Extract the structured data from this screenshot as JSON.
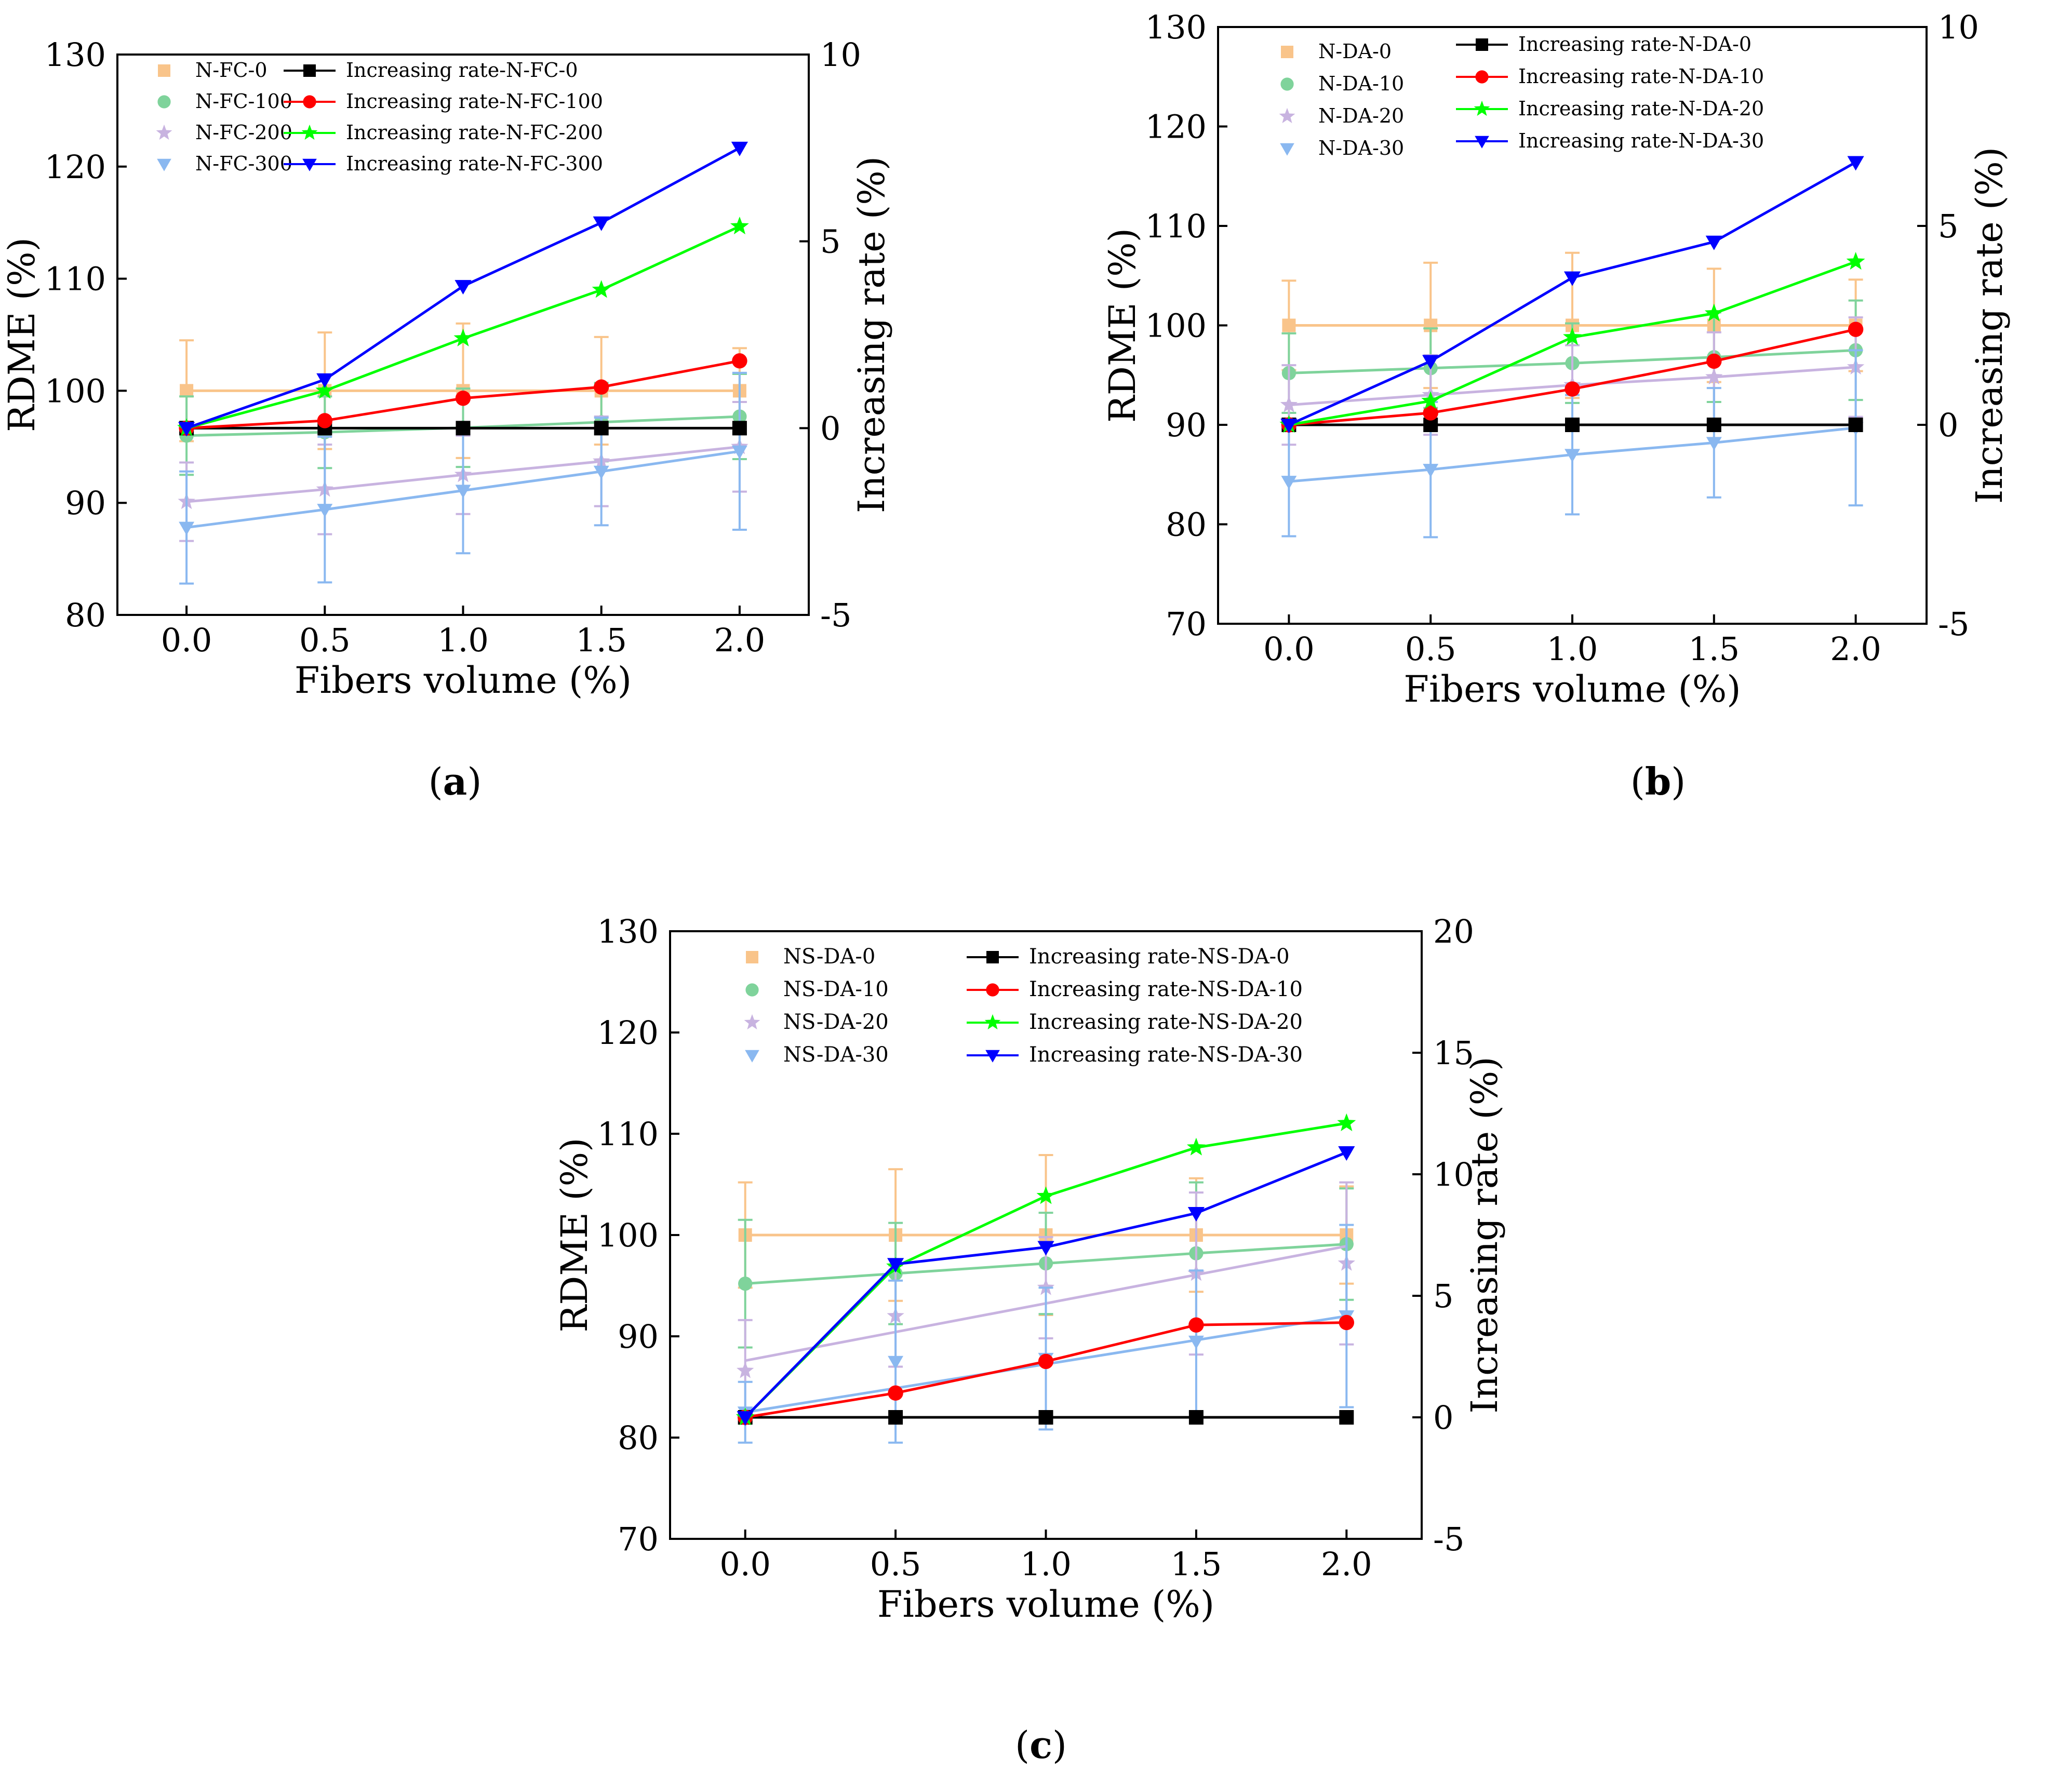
{
  "chart_data": [
    {
      "type": "line",
      "panel_label": "(a)",
      "xlabel": "Fibers volume (%)",
      "ylabel": "RDME (%)",
      "y2label": "Increasing rate (%)",
      "x": [
        0.0,
        0.5,
        1.0,
        1.5,
        2.0
      ],
      "x_tick_labels": [
        "0.0",
        "0.5",
        "1.0",
        "1.5",
        "2.0"
      ],
      "xlim": [
        -0.25,
        2.25
      ],
      "ylim": [
        80,
        130
      ],
      "y_ticks": [
        80,
        90,
        100,
        110,
        120,
        130
      ],
      "y2lim": [
        -5,
        10
      ],
      "y2_ticks": [
        -5,
        0,
        5,
        10
      ],
      "rdme_series": [
        {
          "name": "N-FC-0",
          "color": "#f9c48a",
          "marker": "square",
          "values": [
            100,
            100,
            100,
            100,
            100
          ],
          "err": [
            4.5,
            5.2,
            6.0,
            4.8,
            3.8
          ]
        },
        {
          "name": "N-FC-100",
          "color": "#7fd39b",
          "marker": "circle",
          "values": [
            96.0,
            96.3,
            96.7,
            97.2,
            97.7
          ],
          "err": [
            3.5,
            3.2,
            3.5,
            3.5,
            3.8
          ]
        },
        {
          "name": "N-FC-200",
          "color": "#c8b3e0",
          "marker": "star",
          "values": [
            90.1,
            91.2,
            92.5,
            93.7,
            95.0
          ],
          "err": [
            3.5,
            4.0,
            3.5,
            4.0,
            4.0
          ]
        },
        {
          "name": "N-FC-300",
          "color": "#8ab8f0",
          "marker": "triangle",
          "values": [
            87.8,
            89.4,
            91.1,
            92.8,
            94.6
          ],
          "err": [
            5.0,
            6.5,
            5.6,
            4.8,
            7.0
          ]
        }
      ],
      "rate_series": [
        {
          "name": "Increasing rate-N-FC-0",
          "color": "#000000",
          "marker": "square",
          "values": [
            0,
            0,
            0,
            0,
            0
          ]
        },
        {
          "name": "Increasing rate-N-FC-100",
          "color": "#ff0000",
          "marker": "circle",
          "values": [
            0,
            0.2,
            0.8,
            1.1,
            1.8
          ]
        },
        {
          "name": "Increasing rate-N-FC-200",
          "color": "#00ff00",
          "marker": "star",
          "values": [
            0,
            1.0,
            2.4,
            3.7,
            5.4
          ]
        },
        {
          "name": "Increasing rate-N-FC-300",
          "color": "#0000ff",
          "marker": "triangle",
          "values": [
            0,
            1.3,
            3.8,
            5.5,
            7.5
          ]
        }
      ]
    },
    {
      "type": "line",
      "panel_label": "(b)",
      "xlabel": "Fibers volume (%)",
      "ylabel": "RDME (%)",
      "y2label": "Increasing rate (%)",
      "x": [
        0.0,
        0.5,
        1.0,
        1.5,
        2.0
      ],
      "x_tick_labels": [
        "0.0",
        "0.5",
        "1.0",
        "1.5",
        "2.0"
      ],
      "xlim": [
        -0.25,
        2.25
      ],
      "ylim": [
        70,
        130
      ],
      "y_ticks": [
        70,
        80,
        90,
        100,
        110,
        120,
        130
      ],
      "y2lim": [
        -5,
        10
      ],
      "y2_ticks": [
        -5,
        0,
        5,
        10
      ],
      "rdme_series": [
        {
          "name": "N-DA-0",
          "color": "#f9c48a",
          "marker": "square",
          "values": [
            100,
            100,
            100,
            100,
            100
          ],
          "err": [
            4.5,
            6.3,
            7.3,
            5.7,
            4.6
          ]
        },
        {
          "name": "N-DA-10",
          "color": "#7fd39b",
          "marker": "circle",
          "values": [
            95.2,
            95.7,
            96.2,
            96.8,
            97.5
          ],
          "err": [
            4.0,
            4.0,
            4.0,
            4.5,
            5.0
          ]
        },
        {
          "name": "N-DA-20",
          "color": "#c8b3e0",
          "marker": "star",
          "values": [
            92.0,
            93.0,
            94.0,
            94.8,
            95.8
          ],
          "err": [
            4.0,
            4.0,
            4.0,
            4.5,
            5.0
          ]
        },
        {
          "name": "N-DA-30",
          "color": "#8ab8f0",
          "marker": "triangle",
          "values": [
            84.3,
            85.5,
            87.0,
            88.2,
            89.7
          ],
          "err": [
            5.5,
            6.8,
            6.0,
            5.5,
            7.8
          ]
        }
      ],
      "rate_series": [
        {
          "name": "Increasing rate-N-DA-0",
          "color": "#000000",
          "marker": "square",
          "values": [
            0,
            0,
            0,
            0,
            0
          ]
        },
        {
          "name": "Increasing rate-N-DA-10",
          "color": "#ff0000",
          "marker": "circle",
          "values": [
            0,
            0.3,
            0.9,
            1.6,
            2.4
          ]
        },
        {
          "name": "Increasing rate-N-DA-20",
          "color": "#00ff00",
          "marker": "star",
          "values": [
            0,
            0.6,
            2.2,
            2.8,
            4.1
          ]
        },
        {
          "name": "Increasing rate-N-DA-30",
          "color": "#0000ff",
          "marker": "triangle",
          "values": [
            0,
            1.6,
            3.7,
            4.6,
            6.6
          ]
        }
      ]
    },
    {
      "type": "line",
      "panel_label": "(c)",
      "xlabel": "Fibers volume (%)",
      "ylabel": "RDME (%)",
      "y2label": "Increasing rate (%)",
      "x": [
        0.0,
        0.5,
        1.0,
        1.5,
        2.0
      ],
      "x_tick_labels": [
        "0.0",
        "0.5",
        "1.0",
        "1.5",
        "2.0"
      ],
      "xlim": [
        -0.25,
        2.25
      ],
      "ylim": [
        70,
        130
      ],
      "y_ticks": [
        70,
        80,
        90,
        100,
        110,
        120,
        130
      ],
      "y2lim": [
        -5,
        20
      ],
      "y2_ticks": [
        -5,
        0,
        5,
        10,
        15,
        20
      ],
      "rdme_series": [
        {
          "name": "NS-DA-0",
          "color": "#f9c48a",
          "marker": "square",
          "values": [
            100,
            100,
            100,
            100,
            100
          ],
          "err": [
            5.2,
            6.5,
            7.9,
            5.6,
            4.8
          ]
        },
        {
          "name": "NS-DA-10",
          "color": "#7fd39b",
          "marker": "circle",
          "values": [
            95.2,
            96.2,
            97.2,
            98.2,
            99.1
          ],
          "err": [
            6.3,
            5.0,
            5.0,
            7.0,
            5.5
          ]
        },
        {
          "name": "NS-DA-20",
          "color": "#c8b3e0",
          "marker": "star",
          "values": [
            86.6,
            92.0,
            94.8,
            96.2,
            97.2
          ],
          "err": [
            5.0,
            5.0,
            5.0,
            8.0,
            8.0
          ]
        },
        {
          "name": "NS-DA-30",
          "color": "#8ab8f0",
          "marker": "triangle",
          "values": [
            82.5,
            87.5,
            87.8,
            89.5,
            92.0
          ],
          "err": [
            3.0,
            8.0,
            7.0,
            7.0,
            9.0
          ]
        }
      ],
      "rdme_fit_lines": [
        {
          "name": "NS-DA-20",
          "start": 87.6,
          "end": 98.9
        },
        {
          "name": "NS-DA-30",
          "start": 82.5,
          "end": 92.0
        }
      ],
      "rate_series": [
        {
          "name": "Increasing rate-NS-DA-0",
          "color": "#000000",
          "marker": "square",
          "values": [
            0,
            0,
            0,
            0,
            0
          ]
        },
        {
          "name": "Increasing rate-NS-DA-10",
          "color": "#ff0000",
          "marker": "circle",
          "values": [
            0,
            1.0,
            2.3,
            3.8,
            3.9
          ]
        },
        {
          "name": "Increasing rate-NS-DA-20",
          "color": "#00ff00",
          "marker": "star",
          "values": [
            0,
            6.2,
            9.1,
            11.1,
            12.1
          ]
        },
        {
          "name": "Increasing rate-NS-DA-30",
          "color": "#0000ff",
          "marker": "triangle",
          "values": [
            0,
            6.3,
            7.0,
            8.4,
            10.9
          ]
        }
      ]
    }
  ]
}
